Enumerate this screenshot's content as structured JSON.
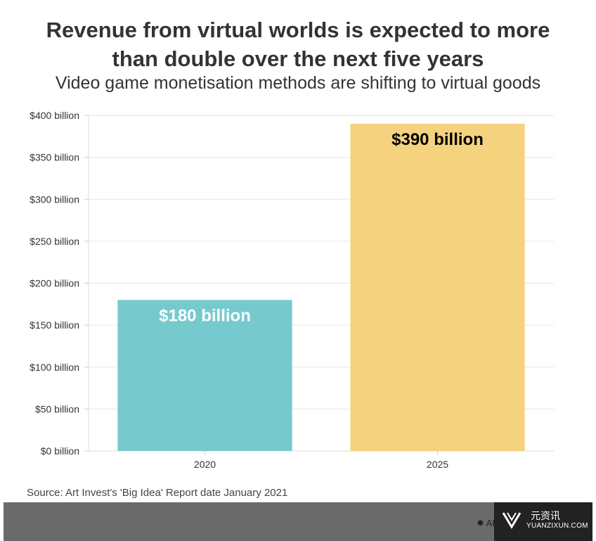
{
  "header": {
    "title_line1": "Revenue from virtual worlds is expected to more",
    "title_line2": "than double over the next five years",
    "subtitle": "Video game monetisation methods are shifting to virtual goods"
  },
  "chart_data": {
    "type": "bar",
    "categories": [
      "2020",
      "2025"
    ],
    "values": [
      180,
      390
    ],
    "value_labels": [
      "$180 billion",
      "$390 billion"
    ],
    "colors": [
      "#76cace",
      "#f5d27e"
    ],
    "label_colors": [
      "#ffffff",
      "#000000"
    ],
    "ylim": [
      0,
      400
    ],
    "yticks": [
      0,
      50,
      100,
      150,
      200,
      250,
      300,
      350,
      400
    ],
    "ytick_labels": [
      "$0 billion",
      "$50 billion",
      "$100 billion",
      "$150 billion",
      "$200 billion",
      "$250 billion",
      "$300 billion",
      "$350 billion",
      "$400 billion"
    ],
    "xlabel": "",
    "ylabel": "",
    "grid": true
  },
  "source": "Source: Art Invest's 'Big Idea' Report date January 2021",
  "footer": {
    "watermark_mark": "✹ AR",
    "brand_cn": "元资讯",
    "brand_en": "YUANZIXUN.COM",
    "brand_icon": "v-logo-icon"
  }
}
